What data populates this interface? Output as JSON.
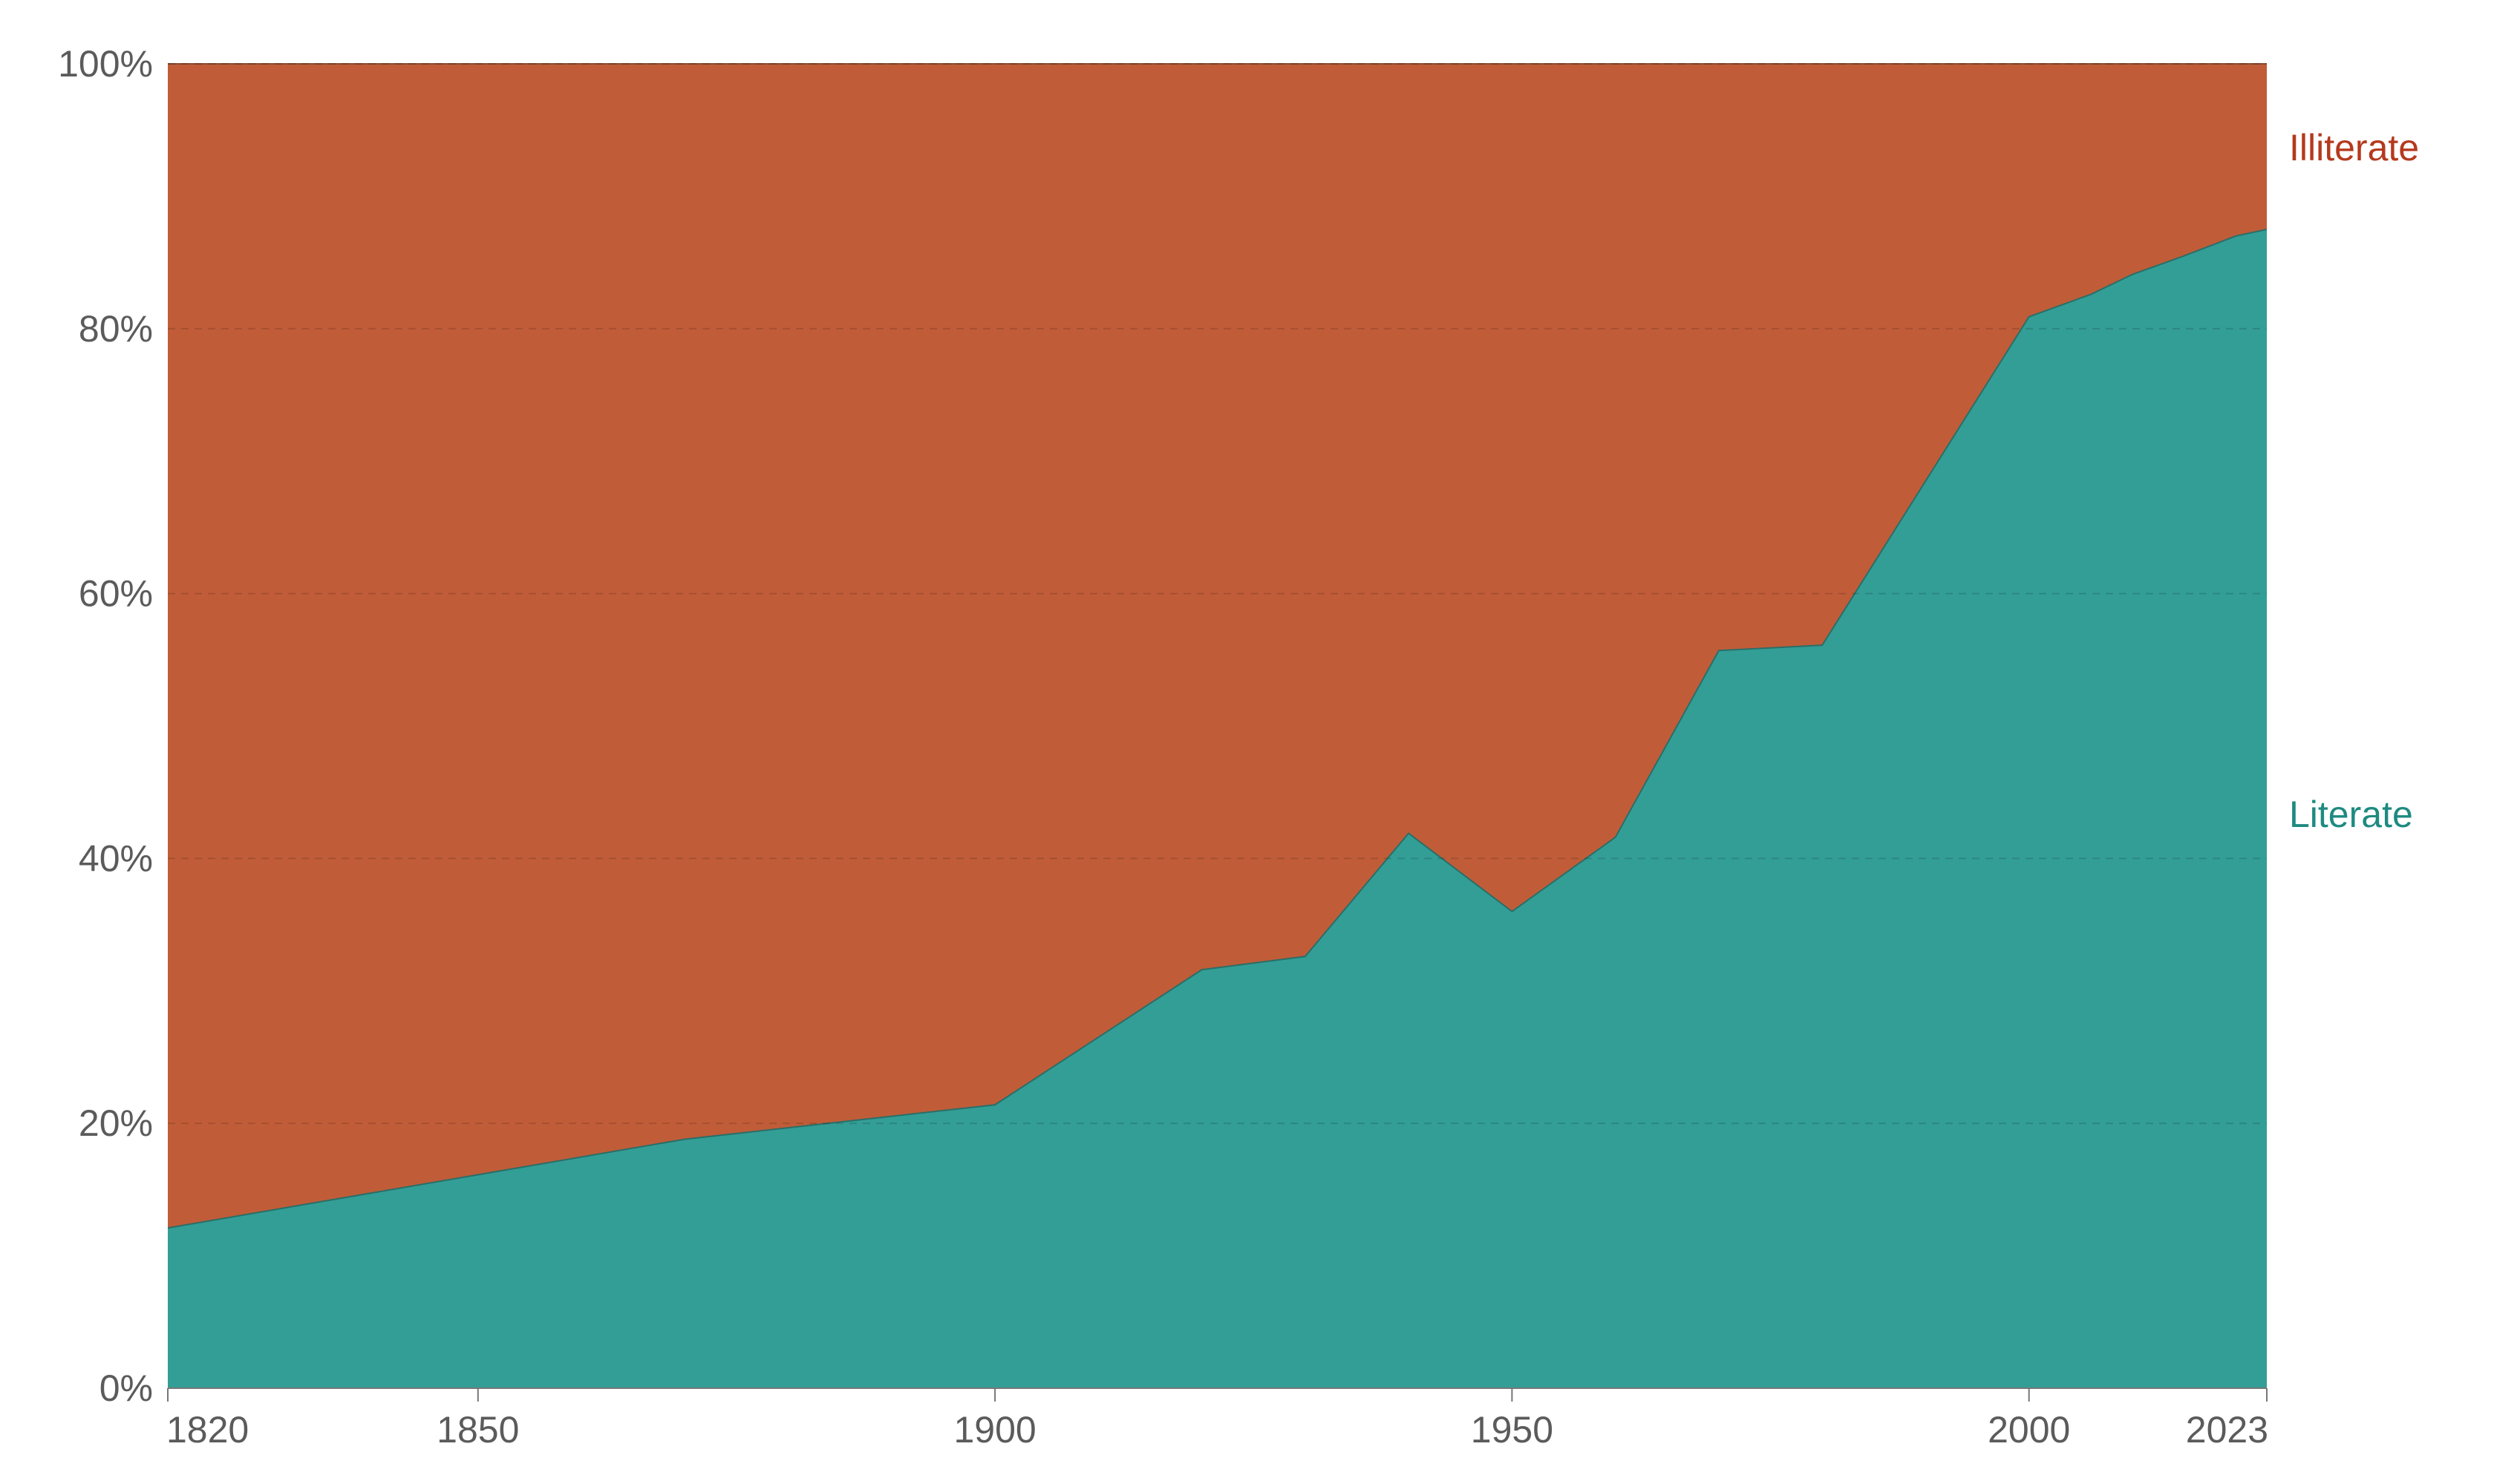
{
  "chart_data": {
    "type": "area",
    "stacked": true,
    "normalized": true,
    "title": "",
    "xlabel": "",
    "ylabel": "",
    "xlim": [
      1820,
      2023
    ],
    "ylim": [
      0,
      100
    ],
    "x_ticks": [
      "1820",
      "1850",
      "1900",
      "1950",
      "2000",
      "2023"
    ],
    "y_ticks": [
      "0%",
      "20%",
      "40%",
      "60%",
      "80%",
      "100%"
    ],
    "grid": "horizontal dashed",
    "legend": "inline labels at right end",
    "series": [
      {
        "name": "Literate",
        "color": "#339e96",
        "points": [
          [
            1820,
            12.1
          ],
          [
            1870,
            18.8
          ],
          [
            1900,
            21.4
          ],
          [
            1920,
            31.6
          ],
          [
            1930,
            32.6
          ],
          [
            1940,
            41.9
          ],
          [
            1950,
            36.0
          ],
          [
            1960,
            41.6
          ],
          [
            1970,
            55.7
          ],
          [
            1980,
            56.1
          ],
          [
            1990,
            68.5
          ],
          [
            2000,
            80.9
          ],
          [
            2006,
            82.6
          ],
          [
            2010,
            84.1
          ],
          [
            2015,
            85.5
          ],
          [
            2020,
            87.0
          ],
          [
            2023,
            87.5
          ]
        ]
      },
      {
        "name": "Illiterate",
        "color": "#c05d38",
        "label_color": "#b5391d",
        "fill": "remainder to 100%"
      }
    ]
  }
}
